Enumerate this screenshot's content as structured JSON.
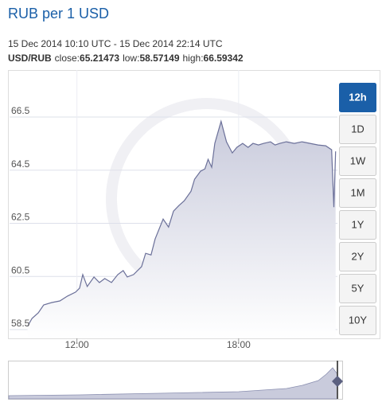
{
  "chart_data": {
    "type": "area",
    "title": "RUB per 1 USD",
    "subtitle": "15 Dec 2014 10:10 UTC - 15 Dec 2014 22:14 UTC",
    "stats": {
      "pair": "USD/RUB",
      "items": [
        {
          "label": "close:",
          "value": 65.21473
        },
        {
          "label": "low:",
          "value": 58.57149
        },
        {
          "label": "high:",
          "value": 66.59342
        }
      ]
    },
    "x": [
      "10:10",
      "10:20",
      "10:34",
      "10:46",
      "11:04",
      "11:22",
      "11:39",
      "11:57",
      "12:06",
      "12:13",
      "12:23",
      "12:38",
      "12:50",
      "13:02",
      "13:17",
      "13:31",
      "13:43",
      "13:52",
      "14:06",
      "14:24",
      "14:33",
      "14:45",
      "14:54",
      "15:12",
      "15:24",
      "15:35",
      "15:47",
      "15:59",
      "16:14",
      "16:22",
      "16:35",
      "16:45",
      "16:52",
      "17:00",
      "17:07",
      "17:21",
      "17:33",
      "17:46",
      "17:56",
      "18:09",
      "18:21",
      "18:32",
      "18:44",
      "18:56",
      "19:11",
      "19:21",
      "19:32",
      "19:46",
      "20:04",
      "20:21",
      "20:39",
      "20:57",
      "21:14",
      "21:27",
      "21:32",
      "21:36"
    ],
    "values": [
      58.62,
      58.92,
      59.13,
      59.43,
      59.52,
      59.58,
      59.76,
      59.91,
      60.06,
      60.57,
      60.12,
      60.48,
      60.27,
      60.42,
      60.27,
      60.57,
      60.72,
      60.48,
      60.57,
      60.87,
      61.37,
      61.31,
      61.91,
      62.66,
      62.36,
      62.96,
      63.17,
      63.35,
      63.71,
      64.16,
      64.46,
      64.55,
      64.91,
      64.61,
      65.51,
      66.34,
      65.57,
      65.15,
      65.36,
      65.51,
      65.36,
      65.51,
      65.45,
      65.51,
      65.57,
      65.45,
      65.51,
      65.57,
      65.51,
      65.57,
      65.51,
      65.45,
      65.42,
      65.27,
      63.11,
      65.21
    ],
    "color": "#6b7099",
    "xlim": [
      "09:30",
      "21:40"
    ],
    "xticks": [
      "12:00",
      "18:00"
    ],
    "ylim": [
      58.17,
      68.27
    ],
    "yticks": [
      58.5,
      60.5,
      62.5,
      64.5,
      66.5
    ],
    "grid": true,
    "ranges": [
      "12h",
      "1D",
      "1W",
      "1M",
      "1Y",
      "2Y",
      "5Y",
      "10Y"
    ],
    "selected_range": 0
  }
}
